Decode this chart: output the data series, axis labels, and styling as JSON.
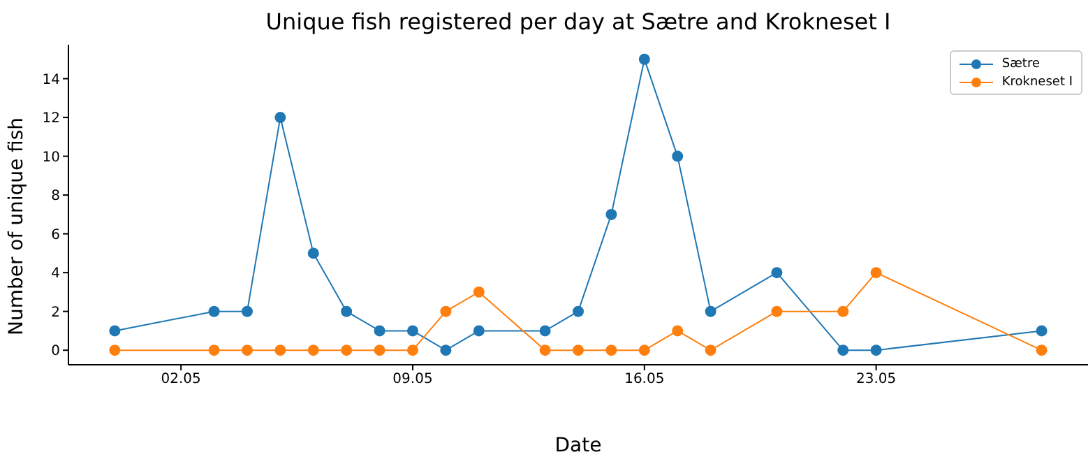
{
  "chart_data": {
    "type": "line",
    "title": "Unique fish registered per day at Sætre and Krokneset I",
    "xlabel": "Date",
    "ylabel": "Number of unique fish",
    "x": [
      "--04-30",
      "--05-03",
      "--05-04",
      "--05-05",
      "--05-06",
      "--05-07",
      "--05-08",
      "--05-09",
      "--05-10",
      "--05-11",
      "--05-13",
      "--05-14",
      "--05-15",
      "--05-16",
      "--05-17",
      "--05-18",
      "--05-20",
      "--05-22",
      "--05-23",
      "--05-28"
    ],
    "series": [
      {
        "name": "Sætre",
        "color": "#1f77b4",
        "values": [
          1,
          2,
          2,
          12,
          5,
          2,
          1,
          1,
          0,
          1,
          1,
          2,
          7,
          15,
          10,
          2,
          4,
          0,
          0,
          1
        ]
      },
      {
        "name": "Krokneset I",
        "color": "#ff7f0e",
        "values": [
          0,
          0,
          0,
          0,
          0,
          0,
          0,
          0,
          2,
          3,
          0,
          0,
          0,
          0,
          1,
          0,
          2,
          2,
          4,
          0
        ]
      }
    ],
    "xlim": [
      "--04-28T14:24",
      "--05-29T09:36"
    ],
    "xticks": [
      {
        "value": "--05-02",
        "label": "02.05"
      },
      {
        "value": "--05-09",
        "label": "09.05"
      },
      {
        "value": "--05-16",
        "label": "16.05"
      },
      {
        "value": "--05-23",
        "label": "23.05"
      }
    ],
    "ylim": [
      -0.75,
      15.75
    ],
    "yticks": [
      0,
      2,
      4,
      6,
      8,
      10,
      12,
      14
    ],
    "grid": false,
    "legend": "top right",
    "marker": "circle",
    "line_style": "solid"
  }
}
